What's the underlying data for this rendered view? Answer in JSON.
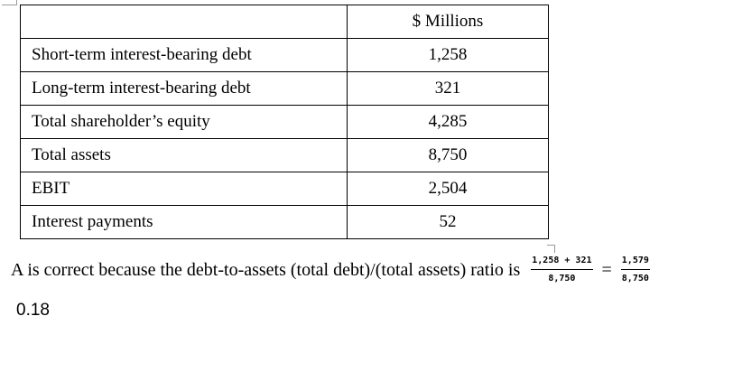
{
  "table": {
    "header": "$ Millions",
    "rows": [
      {
        "label": "Short-term interest-bearing debt",
        "value": "1,258"
      },
      {
        "label": "Long-term interest-bearing debt",
        "value": "321"
      },
      {
        "label": "Total shareholder’s equity",
        "value": "4,285"
      },
      {
        "label": "Total assets",
        "value": "8,750"
      },
      {
        "label": "EBIT",
        "value": "2,504"
      },
      {
        "label": "Interest payments",
        "value": "52"
      }
    ]
  },
  "explanation": {
    "text": "A is correct because the debt-to-assets (total debt)/(total assets) ratio is",
    "fraction1": {
      "numerator": "1,258 + 321",
      "denominator": "8,750"
    },
    "equals": "=",
    "fraction2": {
      "numerator": "1,579",
      "denominator": "8,750"
    },
    "result": "0.18"
  }
}
